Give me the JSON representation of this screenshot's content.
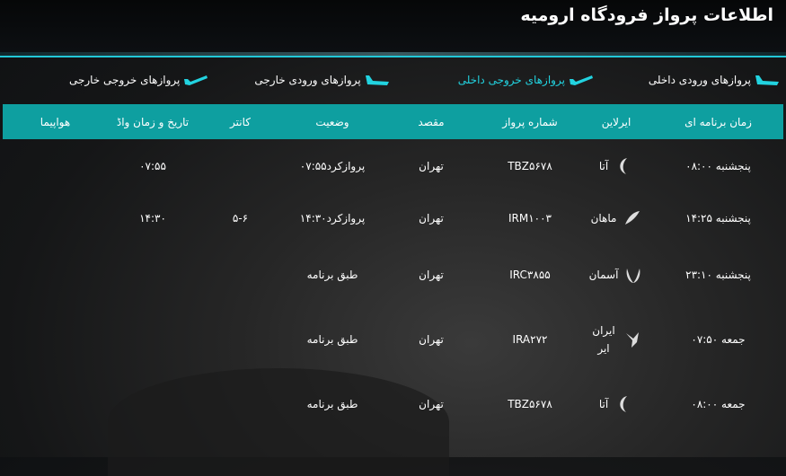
{
  "header": {
    "title": "اطلاعات پرواز فرودگاه ارومیه"
  },
  "tabs": [
    {
      "label": "پروازهای ورودی داخلی",
      "active": false,
      "icon": "airplane-arrival-icon"
    },
    {
      "label": "پروازهای خروجی داخلی",
      "active": true,
      "icon": "airplane-departure-icon"
    },
    {
      "label": "پروازهای ورودی خارجی",
      "active": false,
      "icon": "airplane-arrival-icon"
    },
    {
      "label": "پروازهای خروجی خارجی",
      "active": false,
      "icon": "airplane-departure-icon"
    }
  ],
  "colors": {
    "accent": "#22d3e0",
    "header_bg": "#0e9fa0"
  },
  "table": {
    "columns": [
      "زمان برنامه ای",
      "ایرلاین",
      "شماره پرواز",
      "مقصد",
      "وضعیت",
      "کانتر",
      "تاریخ و زمان واڈ",
      "هواپیما"
    ],
    "rows": [
      {
        "scheduled": "پنجشنبه ۰۸:۰۰",
        "airline": "آتا",
        "logo": "ata-logo-icon",
        "flight": "TBZ۵۶۷۸",
        "destination": "تهران",
        "status": "پروازکرد۰۷:۵۵",
        "counter": "",
        "actual": "۰۷:۵۵",
        "aircraft": ""
      },
      {
        "scheduled": "پنجشنبه ۱۴:۲۵",
        "airline": "ماهان",
        "logo": "mahan-logo-icon",
        "flight": "IRM۱۰۰۳",
        "destination": "تهران",
        "status": "پروازکرد۱۴:۳۰",
        "counter": "۵-۶",
        "actual": "۱۴:۳۰",
        "aircraft": ""
      },
      {
        "scheduled": "پنجشنبه ۲۳:۱۰",
        "airline": "آسمان",
        "logo": "aseman-logo-icon",
        "flight": "IRC۳۸۵۵",
        "destination": "تهران",
        "status": "طبق برنامه",
        "counter": "",
        "actual": "",
        "aircraft": ""
      },
      {
        "scheduled": "جمعه ۰۷:۵۰",
        "airline": "ایران ایر",
        "logo": "iranair-logo-icon",
        "flight": "IRA۲۷۲",
        "destination": "تهران",
        "status": "طبق برنامه",
        "counter": "",
        "actual": "",
        "aircraft": ""
      },
      {
        "scheduled": "جمعه ۰۸:۰۰",
        "airline": "آتا",
        "logo": "ata-logo-icon",
        "flight": "TBZ۵۶۷۸",
        "destination": "تهران",
        "status": "طبق برنامه",
        "counter": "",
        "actual": "",
        "aircraft": ""
      }
    ]
  }
}
